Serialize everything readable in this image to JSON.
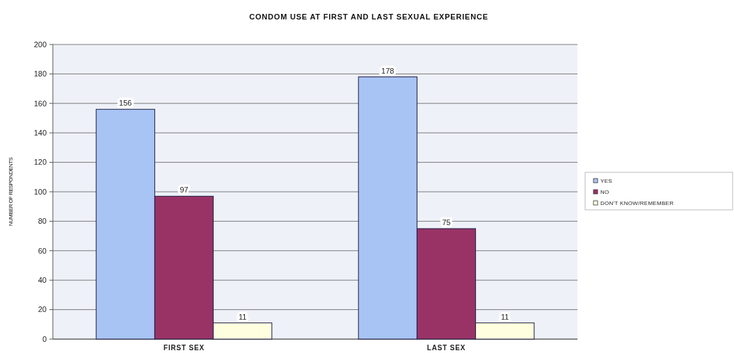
{
  "chart_data": {
    "type": "bar",
    "title": "CONDOM USE AT FIRST AND LAST SEXUAL EXPERIENCE",
    "ylabel": "NUMBER OF RESPONDENTS",
    "categories": [
      "FIRST SEX",
      "LAST SEX"
    ],
    "series": [
      {
        "name": "YES",
        "color": "#a8c4f4",
        "values": [
          156,
          178
        ]
      },
      {
        "name": "NO",
        "color": "#993366",
        "values": [
          97,
          75
        ]
      },
      {
        "name": "DON'T KNOW/REMEMBER",
        "color": "#ffffe0",
        "values": [
          11,
          11
        ]
      }
    ],
    "ylim": [
      0,
      200
    ],
    "yticks": [
      0,
      20,
      40,
      60,
      80,
      100,
      120,
      140,
      160,
      180,
      200
    ],
    "grid": "y",
    "legend": "right",
    "data_labels": true
  }
}
